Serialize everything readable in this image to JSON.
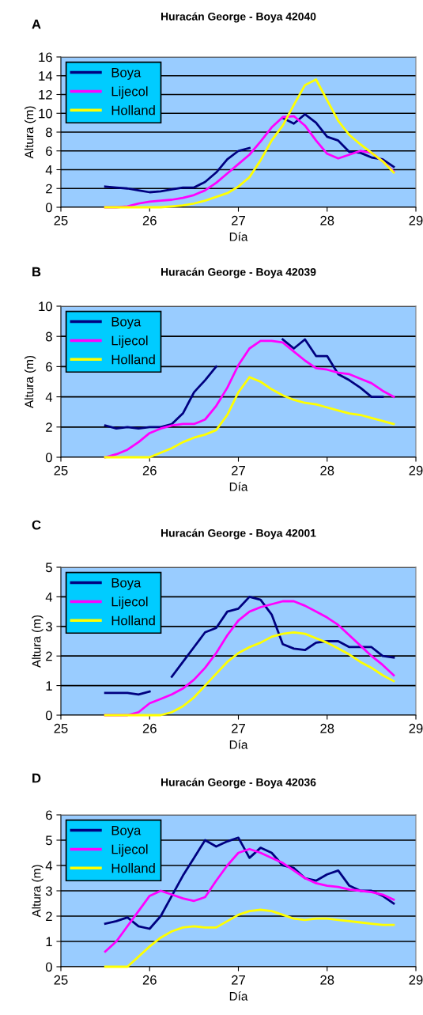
{
  "chart_data": [
    {
      "type": "line",
      "title": "Huracán George - Boya 42040",
      "xlabel": "Día",
      "ylabel": "Altura (m)",
      "annotations": [
        "A"
      ],
      "x": [
        25.5,
        25.625,
        25.75,
        25.875,
        26.0,
        26.125,
        26.25,
        26.375,
        26.5,
        26.625,
        26.75,
        26.875,
        27.0,
        27.125,
        27.25,
        27.375,
        27.5,
        27.625,
        27.75,
        27.875,
        28.0,
        28.125,
        28.25,
        28.375,
        28.5,
        28.625,
        28.75
      ],
      "xlim": [
        25,
        29
      ],
      "xticks": [
        25,
        26,
        27,
        28,
        29
      ],
      "ylim": [
        0,
        16
      ],
      "yticks": [
        0,
        2,
        4,
        6,
        8,
        10,
        12,
        14,
        16
      ],
      "grid": "y",
      "legend": "top left",
      "series": [
        {
          "name": "Boya",
          "color": "#000080",
          "values": [
            2.2,
            2.1,
            2.0,
            1.8,
            1.6,
            1.7,
            1.9,
            2.1,
            2.1,
            2.7,
            3.7,
            5.1,
            6.0,
            6.3,
            null,
            null,
            9.5,
            8.9,
            9.9,
            9.0,
            7.5,
            7.1,
            5.9,
            5.8,
            5.3,
            5.1,
            4.3
          ]
        },
        {
          "name": "Lijecol",
          "color": "#ff00ff",
          "values": [
            0,
            0,
            0.1,
            0.4,
            0.6,
            0.7,
            0.8,
            1.0,
            1.3,
            1.8,
            2.6,
            3.6,
            4.6,
            5.6,
            7.0,
            8.5,
            9.6,
            9.7,
            8.7,
            7.1,
            5.7,
            5.2,
            5.6,
            6.0,
            5.8,
            4.9,
            3.8
          ]
        },
        {
          "name": "Holland",
          "color": "#ffff00",
          "values": [
            0,
            0,
            0,
            0,
            0,
            0,
            0.1,
            0.2,
            0.4,
            0.7,
            1.1,
            1.5,
            2.2,
            3.2,
            5.0,
            7.1,
            8.7,
            10.9,
            13.0,
            13.6,
            11.4,
            9.2,
            7.7,
            6.7,
            5.8,
            4.9,
            3.7
          ]
        }
      ]
    },
    {
      "type": "line",
      "title": "Huracán George - Boya 42039",
      "xlabel": "Día",
      "ylabel": "Altura (m)",
      "annotations": [
        "B"
      ],
      "x": [
        25.5,
        25.625,
        25.75,
        25.875,
        26.0,
        26.125,
        26.25,
        26.375,
        26.5,
        26.625,
        26.75,
        26.875,
        27.0,
        27.125,
        27.25,
        27.375,
        27.5,
        27.625,
        27.75,
        27.875,
        28.0,
        28.125,
        28.25,
        28.375,
        28.5,
        28.625,
        28.75
      ],
      "xlim": [
        25,
        29
      ],
      "xticks": [
        25,
        26,
        27,
        28,
        29
      ],
      "ylim": [
        0,
        10
      ],
      "yticks": [
        0,
        2,
        4,
        6,
        8,
        10
      ],
      "grid": "y",
      "legend": "top left",
      "series": [
        {
          "name": "Boya",
          "color": "#000080",
          "values": [
            2.1,
            1.9,
            2.0,
            1.9,
            2.0,
            2.0,
            2.2,
            2.9,
            4.3,
            5.1,
            6.0,
            null,
            null,
            null,
            null,
            null,
            7.8,
            7.2,
            7.8,
            6.7,
            6.7,
            5.5,
            5.1,
            4.6,
            4.0,
            4.0,
            null
          ]
        },
        {
          "name": "Lijecol",
          "color": "#ff00ff",
          "values": [
            0,
            0.2,
            0.5,
            1.0,
            1.6,
            1.9,
            2.1,
            2.2,
            2.2,
            2.5,
            3.4,
            4.6,
            6.1,
            7.2,
            7.7,
            7.7,
            7.6,
            7.0,
            6.4,
            5.9,
            5.8,
            5.6,
            5.5,
            5.2,
            4.9,
            4.4,
            4.0
          ]
        },
        {
          "name": "Holland",
          "color": "#ffff00",
          "values": [
            0,
            0,
            0,
            0,
            0,
            0.3,
            0.6,
            1.0,
            1.3,
            1.5,
            1.8,
            2.8,
            4.3,
            5.3,
            5.0,
            4.5,
            4.1,
            3.8,
            3.6,
            3.5,
            3.3,
            3.1,
            2.9,
            2.8,
            2.6,
            2.4,
            2.2
          ]
        }
      ]
    },
    {
      "type": "line",
      "title": "Huracán George - Boya 42001",
      "xlabel": "Día",
      "ylabel": "Altura (m)",
      "annotations": [
        "C"
      ],
      "x": [
        25.5,
        25.625,
        25.75,
        25.875,
        26.0,
        26.125,
        26.25,
        26.375,
        26.5,
        26.625,
        26.75,
        26.875,
        27.0,
        27.125,
        27.25,
        27.375,
        27.5,
        27.625,
        27.75,
        27.875,
        28.0,
        28.125,
        28.25,
        28.375,
        28.5,
        28.625,
        28.75
      ],
      "xlim": [
        25,
        29
      ],
      "xticks": [
        25,
        26,
        27,
        28,
        29
      ],
      "ylim": [
        0,
        5
      ],
      "yticks": [
        0,
        1,
        2,
        3,
        4,
        5
      ],
      "grid": "y",
      "legend": "top left",
      "series": [
        {
          "name": "Boya",
          "color": "#000080",
          "values": [
            0.75,
            0.75,
            0.75,
            0.7,
            0.8,
            null,
            1.3,
            1.8,
            2.3,
            2.8,
            2.95,
            3.5,
            3.6,
            4.0,
            3.9,
            3.4,
            2.4,
            2.25,
            2.2,
            2.45,
            2.5,
            2.5,
            2.3,
            2.3,
            2.3,
            2.0,
            1.95
          ]
        },
        {
          "name": "Lijecol",
          "color": "#ff00ff",
          "values": [
            0,
            0,
            0,
            0.1,
            0.4,
            0.55,
            0.7,
            0.9,
            1.2,
            1.6,
            2.1,
            2.7,
            3.2,
            3.5,
            3.65,
            3.75,
            3.85,
            3.85,
            3.7,
            3.5,
            3.3,
            3.05,
            2.7,
            2.35,
            2.0,
            1.7,
            1.35
          ]
        },
        {
          "name": "Holland",
          "color": "#ffff00",
          "values": [
            0,
            0,
            0,
            0,
            0,
            0,
            0.1,
            0.3,
            0.6,
            1.0,
            1.4,
            1.8,
            2.1,
            2.3,
            2.45,
            2.65,
            2.75,
            2.8,
            2.75,
            2.6,
            2.45,
            2.25,
            2.05,
            1.8,
            1.6,
            1.35,
            1.15
          ]
        }
      ]
    },
    {
      "type": "line",
      "title": "Huracán George - Boya 42036",
      "xlabel": "Día",
      "ylabel": "Altura (m)",
      "annotations": [
        "D"
      ],
      "x": [
        25.5,
        25.625,
        25.75,
        25.875,
        26.0,
        26.125,
        26.25,
        26.375,
        26.5,
        26.625,
        26.75,
        26.875,
        27.0,
        27.125,
        27.25,
        27.375,
        27.5,
        27.625,
        27.75,
        27.875,
        28.0,
        28.125,
        28.25,
        28.375,
        28.5,
        28.625,
        28.75
      ],
      "xlim": [
        25,
        29
      ],
      "xticks": [
        25,
        26,
        27,
        28,
        29
      ],
      "ylim": [
        0,
        6
      ],
      "yticks": [
        0,
        1,
        2,
        3,
        4,
        5,
        6
      ],
      "grid": "y",
      "legend": "top left",
      "series": [
        {
          "name": "Boya",
          "color": "#000080",
          "values": [
            1.7,
            1.8,
            1.95,
            1.6,
            1.5,
            2.0,
            2.8,
            3.6,
            4.3,
            5.0,
            4.75,
            4.95,
            5.1,
            4.3,
            4.7,
            4.5,
            4.0,
            3.9,
            3.5,
            3.4,
            3.65,
            3.8,
            3.2,
            3.0,
            3.0,
            2.8,
            2.5
          ]
        },
        {
          "name": "Lijecol",
          "color": "#ff00ff",
          "values": [
            0.6,
            1.0,
            1.6,
            2.2,
            2.8,
            3.0,
            2.85,
            2.7,
            2.6,
            2.75,
            3.4,
            4.0,
            4.5,
            4.65,
            4.5,
            4.3,
            4.1,
            3.8,
            3.5,
            3.3,
            3.2,
            3.15,
            3.05,
            3.0,
            2.95,
            2.85,
            2.65
          ]
        },
        {
          "name": "Holland",
          "color": "#ffff00",
          "values": [
            0,
            0,
            0,
            0.4,
            0.8,
            1.15,
            1.4,
            1.55,
            1.6,
            1.55,
            1.55,
            1.8,
            2.05,
            2.2,
            2.25,
            2.2,
            2.05,
            1.9,
            1.85,
            1.9,
            1.9,
            1.85,
            1.8,
            1.75,
            1.7,
            1.65,
            1.65
          ]
        }
      ]
    }
  ]
}
